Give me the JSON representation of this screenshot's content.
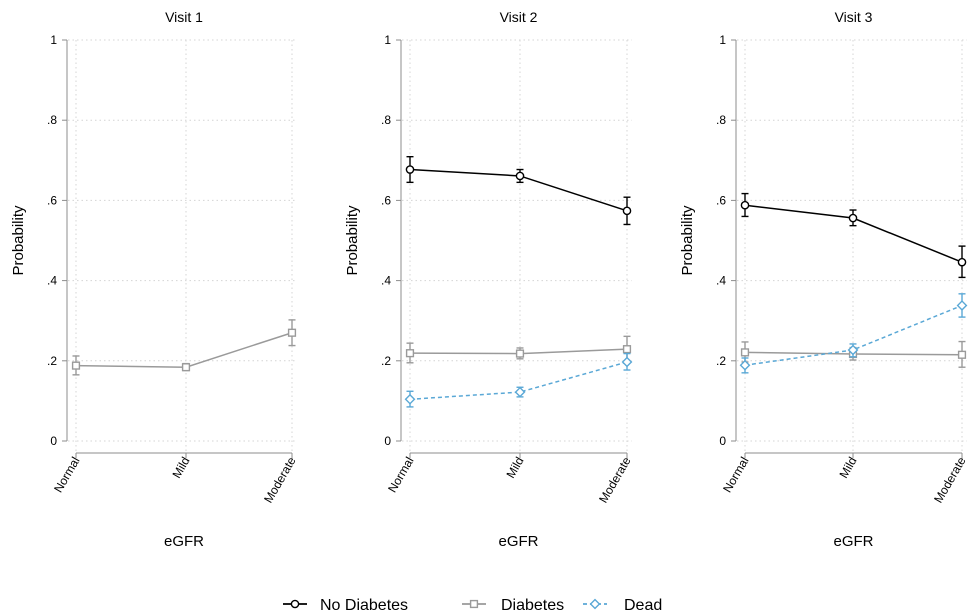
{
  "colors": {
    "no_diabetes": "#000000",
    "diabetes": "#9a9a9a",
    "dead": "#5aa8d6",
    "axis": "#8c8c8c",
    "grid": "#d4d4d4"
  },
  "chart_data": [
    {
      "type": "line",
      "title": "Visit 1",
      "xlabel": "eGFR",
      "ylabel": "Probability",
      "categories": [
        "Normal",
        "Mild",
        "Moderate"
      ],
      "ylim": [
        0,
        1
      ],
      "yticks": [
        0,
        0.2,
        0.4,
        0.6,
        0.8,
        1
      ],
      "ytick_labels": [
        "0",
        ".2",
        ".4",
        ".6",
        ".8",
        "1"
      ],
      "grid": true,
      "series": [
        {
          "name": "Diabetes",
          "values": [
            0.188,
            0.184,
            0.27
          ],
          "ci_low": [
            0.165,
            0.176,
            0.238
          ],
          "ci_high": [
            0.212,
            0.193,
            0.302
          ]
        }
      ]
    },
    {
      "type": "line",
      "title": "Visit 2",
      "xlabel": "eGFR",
      "ylabel": "Probability",
      "categories": [
        "Normal",
        "Mild",
        "Moderate"
      ],
      "ylim": [
        0,
        1
      ],
      "yticks": [
        0,
        0.2,
        0.4,
        0.6,
        0.8,
        1
      ],
      "ytick_labels": [
        "0",
        ".2",
        ".4",
        ".6",
        ".8",
        "1"
      ],
      "grid": true,
      "series": [
        {
          "name": "No Diabetes",
          "values": [
            0.677,
            0.661,
            0.574
          ],
          "ci_low": [
            0.645,
            0.645,
            0.54
          ],
          "ci_high": [
            0.709,
            0.677,
            0.608
          ]
        },
        {
          "name": "Diabetes",
          "values": [
            0.219,
            0.218,
            0.229
          ],
          "ci_low": [
            0.195,
            0.205,
            0.198
          ],
          "ci_high": [
            0.244,
            0.232,
            0.261
          ]
        },
        {
          "name": "Dead",
          "values": [
            0.104,
            0.122,
            0.197
          ],
          "ci_low": [
            0.085,
            0.11,
            0.177
          ],
          "ci_high": [
            0.124,
            0.134,
            0.218
          ]
        }
      ]
    },
    {
      "type": "line",
      "title": "Visit 3",
      "xlabel": "eGFR",
      "ylabel": "Probability",
      "categories": [
        "Normal",
        "Mild",
        "Moderate"
      ],
      "ylim": [
        0,
        1
      ],
      "yticks": [
        0,
        0.2,
        0.4,
        0.6,
        0.8,
        1
      ],
      "ytick_labels": [
        "0",
        ".2",
        ".4",
        ".6",
        ".8",
        "1"
      ],
      "grid": true,
      "series": [
        {
          "name": "No Diabetes",
          "values": [
            0.588,
            0.556,
            0.446
          ],
          "ci_low": [
            0.56,
            0.537,
            0.408
          ],
          "ci_high": [
            0.617,
            0.576,
            0.486
          ]
        },
        {
          "name": "Diabetes",
          "values": [
            0.221,
            0.217,
            0.215
          ],
          "ci_low": [
            0.197,
            0.202,
            0.184
          ],
          "ci_high": [
            0.247,
            0.233,
            0.248
          ]
        },
        {
          "name": "Dead",
          "values": [
            0.189,
            0.227,
            0.338
          ],
          "ci_low": [
            0.17,
            0.21,
            0.309
          ],
          "ci_high": [
            0.207,
            0.242,
            0.367
          ]
        }
      ]
    }
  ],
  "legend": {
    "position": "bottom-center",
    "items": [
      {
        "label": "No Diabetes",
        "series": "No Diabetes"
      },
      {
        "label": "Diabetes",
        "series": "Diabetes"
      },
      {
        "label": "Dead",
        "series": "Dead"
      }
    ]
  }
}
